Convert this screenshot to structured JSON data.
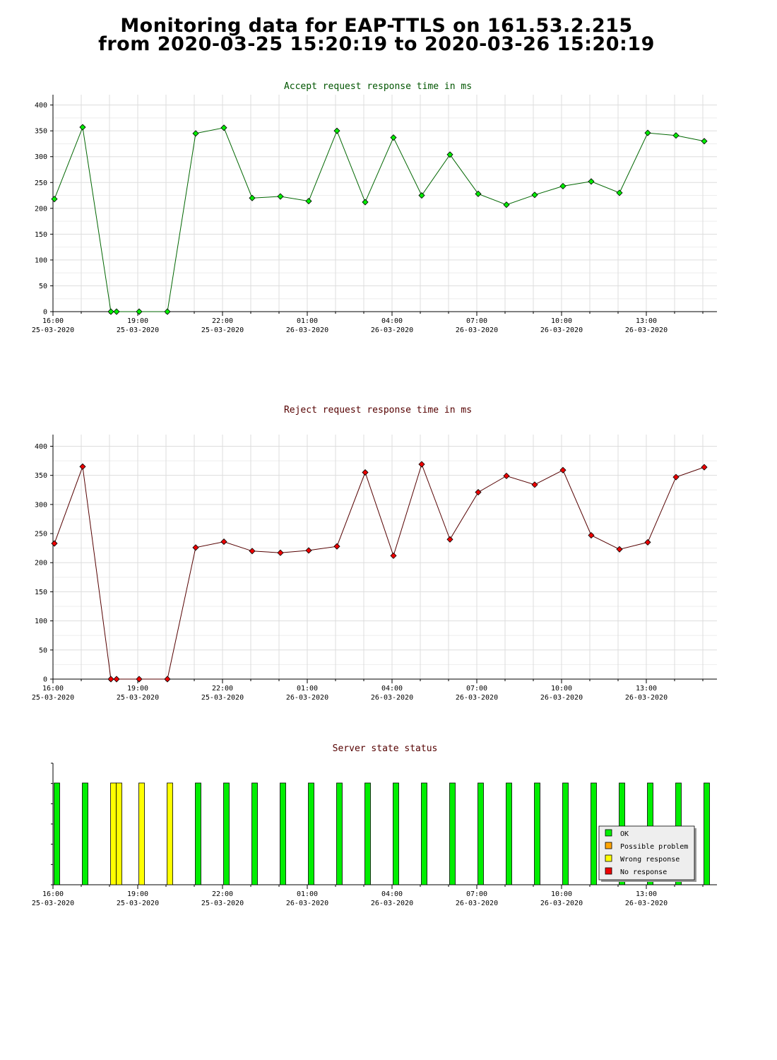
{
  "page": {
    "title_line1": "Monitoring data for EAP-TTLS on 161.53.2.215",
    "title_line2": "from 2020-03-25 15:20:19 to 2020-03-26 15:20:19"
  },
  "colors": {
    "accept_marker": "#00ee00",
    "accept_line": "#006600",
    "accept_title": "#005500",
    "reject_marker": "#ee0000",
    "reject_line": "#550000",
    "reject_title": "#550000",
    "status_title": "#550000",
    "grid": "#dddddd",
    "ok": "#00ee00",
    "possible_problem": "#ffa500",
    "wrong_response": "#ffff00",
    "no_response": "#ee0000"
  },
  "chart_data": [
    {
      "id": "accept",
      "type": "line",
      "title": "Accept request response time in ms",
      "ylim": [
        0,
        420
      ],
      "yticks": [
        0,
        50,
        100,
        150,
        200,
        250,
        300,
        350,
        400
      ],
      "xlim": [
        16.0,
        39.5
      ],
      "x_ticks": [
        {
          "x": 16,
          "time": "16:00",
          "date": "25-03-2020"
        },
        {
          "x": 19,
          "time": "19:00",
          "date": "25-03-2020"
        },
        {
          "x": 22,
          "time": "22:00",
          "date": "25-03-2020"
        },
        {
          "x": 25,
          "time": "01:00",
          "date": "26-03-2020"
        },
        {
          "x": 28,
          "time": "04:00",
          "date": "26-03-2020"
        },
        {
          "x": 31,
          "time": "07:00",
          "date": "26-03-2020"
        },
        {
          "x": 34,
          "time": "10:00",
          "date": "26-03-2020"
        },
        {
          "x": 37,
          "time": "13:00",
          "date": "26-03-2020"
        }
      ],
      "grid": true,
      "series": [
        {
          "x": [
            16.05,
            17.05,
            18.05,
            18.25,
            19.05,
            20.05,
            21.05,
            22.05,
            23.05,
            24.05,
            25.05,
            26.05,
            27.05,
            28.05,
            29.05,
            30.05,
            31.05,
            32.05,
            33.05,
            34.05,
            35.05,
            36.05,
            37.05,
            38.05,
            39.05
          ],
          "values": [
            218,
            357,
            0,
            0,
            0,
            0,
            345,
            356,
            220,
            223,
            214,
            350,
            212,
            337,
            225,
            304,
            228,
            207,
            226,
            243,
            252,
            230,
            346,
            341,
            330
          ]
        }
      ]
    },
    {
      "id": "reject",
      "type": "line",
      "title": "Reject request response time in ms",
      "ylim": [
        0,
        420
      ],
      "yticks": [
        0,
        50,
        100,
        150,
        200,
        250,
        300,
        350,
        400
      ],
      "xlim": [
        16.0,
        39.5
      ],
      "x_ticks": [
        {
          "x": 16,
          "time": "16:00",
          "date": "25-03-2020"
        },
        {
          "x": 19,
          "time": "19:00",
          "date": "25-03-2020"
        },
        {
          "x": 22,
          "time": "22:00",
          "date": "25-03-2020"
        },
        {
          "x": 25,
          "time": "01:00",
          "date": "26-03-2020"
        },
        {
          "x": 28,
          "time": "04:00",
          "date": "26-03-2020"
        },
        {
          "x": 31,
          "time": "07:00",
          "date": "26-03-2020"
        },
        {
          "x": 34,
          "time": "10:00",
          "date": "26-03-2020"
        },
        {
          "x": 37,
          "time": "13:00",
          "date": "26-03-2020"
        }
      ],
      "grid": true,
      "series": [
        {
          "x": [
            16.05,
            17.05,
            18.05,
            18.25,
            19.05,
            20.05,
            21.05,
            22.05,
            23.05,
            24.05,
            25.05,
            26.05,
            27.05,
            28.05,
            29.05,
            30.05,
            31.05,
            32.05,
            33.05,
            34.05,
            35.05,
            36.05,
            37.05,
            38.05,
            39.05
          ],
          "values": [
            233,
            365,
            0,
            0,
            0,
            0,
            226,
            236,
            220,
            217,
            221,
            228,
            355,
            212,
            369,
            240,
            321,
            349,
            334,
            359,
            247,
            223,
            235,
            347,
            364
          ]
        }
      ]
    },
    {
      "id": "status",
      "type": "bar",
      "title": "Server state status",
      "xlim": [
        16.0,
        39.5
      ],
      "x_ticks": [
        {
          "x": 16,
          "time": "16:00",
          "date": "25-03-2020"
        },
        {
          "x": 19,
          "time": "19:00",
          "date": "25-03-2020"
        },
        {
          "x": 22,
          "time": "22:00",
          "date": "25-03-2020"
        },
        {
          "x": 25,
          "time": "01:00",
          "date": "26-03-2020"
        },
        {
          "x": 28,
          "time": "04:00",
          "date": "26-03-2020"
        },
        {
          "x": 31,
          "time": "07:00",
          "date": "26-03-2020"
        },
        {
          "x": 34,
          "time": "10:00",
          "date": "26-03-2020"
        },
        {
          "x": 37,
          "time": "13:00",
          "date": "26-03-2020"
        }
      ],
      "x": [
        16.05,
        17.05,
        18.05,
        18.25,
        19.05,
        20.05,
        21.05,
        22.05,
        23.05,
        24.05,
        25.05,
        26.05,
        27.05,
        28.05,
        29.05,
        30.05,
        31.05,
        32.05,
        33.05,
        34.05,
        35.05,
        36.05,
        37.05,
        38.05,
        39.05
      ],
      "states": [
        "ok",
        "ok",
        "wrong_response",
        "wrong_response",
        "wrong_response",
        "wrong_response",
        "ok",
        "ok",
        "ok",
        "ok",
        "ok",
        "ok",
        "ok",
        "ok",
        "ok",
        "ok",
        "ok",
        "ok",
        "ok",
        "ok",
        "ok",
        "ok",
        "ok",
        "ok",
        "ok"
      ],
      "legend_position": "bottom-right",
      "legend": [
        {
          "key": "ok",
          "label": "OK"
        },
        {
          "key": "possible_problem",
          "label": "Possible problem"
        },
        {
          "key": "wrong_response",
          "label": "Wrong response"
        },
        {
          "key": "no_response",
          "label": "No response"
        }
      ]
    }
  ]
}
